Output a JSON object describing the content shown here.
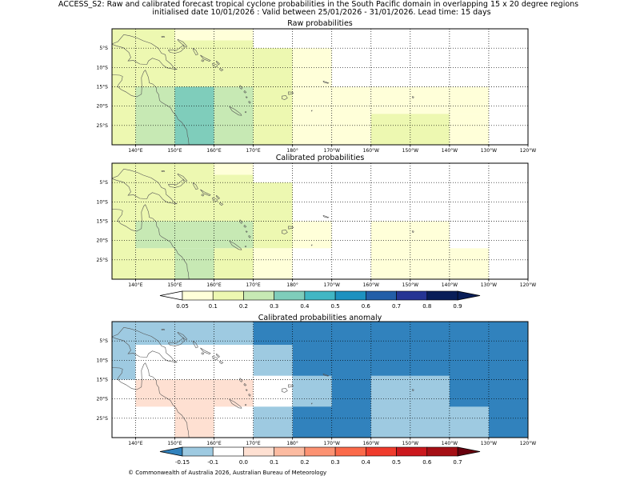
{
  "header": {
    "title_line1": "ACCESS_S2: Raw and calibrated forecast tropical cyclone probabilities in the South Pacific domain in overlapping 15 x 20 degree regions",
    "title_line2": "initialised date 10/01/2026 :  Valid between 25/01/2026 - 31/01/2026. Lead time: 15 days"
  },
  "footer": {
    "copyright": "© Commonwealth of Australia 2026, Australian Bureau of Meteorology"
  },
  "chart_data": [
    {
      "type": "heatmap",
      "title": "Raw probabilities",
      "xlim": [
        134,
        240
      ],
      "ylim": [
        -30,
        0
      ],
      "x_ticks": [
        140,
        150,
        160,
        170,
        180,
        190,
        200,
        210,
        220,
        230,
        240
      ],
      "x_tick_labels": [
        "140°E",
        "150°E",
        "160°E",
        "170°E",
        "180°",
        "170°W",
        "160°W",
        "150°W",
        "140°W",
        "130°W",
        "120°W"
      ],
      "y_ticks": [
        -5,
        -10,
        -15,
        -20,
        -25
      ],
      "y_tick_labels": [
        "5°S",
        "10°S",
        "15°S",
        "20°S",
        "25°S"
      ],
      "cells": [
        {
          "lon": [
            134,
            140
          ],
          "lat": [
            -30,
            0
          ],
          "value": 0.12
        },
        {
          "lon": [
            140,
            150
          ],
          "lat": [
            -15,
            0
          ],
          "value": 0.12
        },
        {
          "lon": [
            140,
            150
          ],
          "lat": [
            -30,
            -15
          ],
          "value": 0.22
        },
        {
          "lon": [
            150,
            160
          ],
          "lat": [
            -30,
            -15
          ],
          "value": 0.32
        },
        {
          "lon": [
            150,
            160
          ],
          "lat": [
            -15,
            -3
          ],
          "value": 0.12
        },
        {
          "lon": [
            150,
            170
          ],
          "lat": [
            -3,
            0
          ],
          "value": 0.07
        },
        {
          "lon": [
            160,
            170
          ],
          "lat": [
            -3,
            -15
          ],
          "value": 0.12
        },
        {
          "lon": [
            160,
            170
          ],
          "lat": [
            -30,
            -15
          ],
          "value": 0.22
        },
        {
          "lon": [
            170,
            180
          ],
          "lat": [
            -30,
            -5
          ],
          "value": 0.12
        },
        {
          "lon": [
            180,
            190
          ],
          "lat": [
            -15,
            -5
          ],
          "value": 0.07
        },
        {
          "lon": [
            180,
            190
          ],
          "lat": [
            -30,
            -15
          ],
          "value": 0.07
        },
        {
          "lon": [
            190,
            200
          ],
          "lat": [
            -30,
            -15
          ],
          "value": 0.07
        },
        {
          "lon": [
            200,
            230
          ],
          "lat": [
            -22,
            -15
          ],
          "value": 0.07
        },
        {
          "lon": [
            200,
            220
          ],
          "lat": [
            -30,
            -22
          ],
          "value": 0.12
        },
        {
          "lon": [
            220,
            230
          ],
          "lat": [
            -30,
            -22
          ],
          "value": 0.07
        }
      ]
    },
    {
      "type": "heatmap",
      "title": "Calibrated probabilities",
      "xlim": [
        134,
        240
      ],
      "ylim": [
        -30,
        0
      ],
      "x_ticks": [
        140,
        150,
        160,
        170,
        180,
        190,
        200,
        210,
        220,
        230,
        240
      ],
      "x_tick_labels": [
        "140°E",
        "150°E",
        "160°E",
        "170°E",
        "180°",
        "170°W",
        "160°W",
        "150°W",
        "140°W",
        "130°W",
        "120°W"
      ],
      "y_ticks": [
        -5,
        -10,
        -15,
        -20,
        -25
      ],
      "y_tick_labels": [
        "5°S",
        "10°S",
        "15°S",
        "20°S",
        "25°S"
      ],
      "cells": [
        {
          "lon": [
            134,
            140
          ],
          "lat": [
            -30,
            0
          ],
          "value": 0.12
        },
        {
          "lon": [
            140,
            160
          ],
          "lat": [
            -15,
            0
          ],
          "value": 0.12
        },
        {
          "lon": [
            140,
            160
          ],
          "lat": [
            -22,
            -15
          ],
          "value": 0.22
        },
        {
          "lon": [
            140,
            150
          ],
          "lat": [
            -30,
            -22
          ],
          "value": 0.12
        },
        {
          "lon": [
            150,
            160
          ],
          "lat": [
            -30,
            -22
          ],
          "value": 0.22
        },
        {
          "lon": [
            160,
            170
          ],
          "lat": [
            -3,
            0
          ],
          "value": 0.07
        },
        {
          "lon": [
            160,
            170
          ],
          "lat": [
            -15,
            -3
          ],
          "value": 0.12
        },
        {
          "lon": [
            160,
            170
          ],
          "lat": [
            -22,
            -15
          ],
          "value": 0.22
        },
        {
          "lon": [
            160,
            170
          ],
          "lat": [
            -30,
            -22
          ],
          "value": 0.12
        },
        {
          "lon": [
            170,
            180
          ],
          "lat": [
            -22,
            -5
          ],
          "value": 0.12
        },
        {
          "lon": [
            170,
            180
          ],
          "lat": [
            -30,
            -22
          ],
          "value": 0.07
        },
        {
          "lon": [
            180,
            190
          ],
          "lat": [
            -22,
            -15
          ],
          "value": 0.07
        },
        {
          "lon": [
            200,
            220
          ],
          "lat": [
            -22,
            -15
          ],
          "value": 0.07
        },
        {
          "lon": [
            200,
            230
          ],
          "lat": [
            -30,
            -22
          ],
          "value": 0.07
        }
      ],
      "colorbar": {
        "bounds": [
          0.05,
          0.1,
          0.2,
          0.3,
          0.4,
          0.5,
          0.6,
          0.7,
          0.8,
          0.9
        ],
        "labels": [
          "0.05",
          "0.1",
          "0.2",
          "0.3",
          "0.4",
          "0.5",
          "0.6",
          "0.7",
          "0.8",
          "0.9"
        ],
        "under_color": "#ffffff",
        "over_color": "#081d58",
        "colors": [
          "#ffffd9",
          "#edf8b1",
          "#c7e9b4",
          "#7fcdbb",
          "#41b6c4",
          "#1d91c0",
          "#225ea8",
          "#253494",
          "#081d58"
        ]
      }
    },
    {
      "type": "heatmap",
      "title": "Calibrated probabilities anomaly",
      "xlim": [
        134,
        240
      ],
      "ylim": [
        -30,
        0
      ],
      "x_ticks": [
        140,
        150,
        160,
        170,
        180,
        190,
        200,
        210,
        220,
        230,
        240
      ],
      "x_tick_labels": [
        "140°E",
        "150°E",
        "160°E",
        "170°E",
        "180°",
        "170°W",
        "160°W",
        "150°W",
        "140°W",
        "130°W",
        "120°W"
      ],
      "y_ticks": [
        -5,
        -10,
        -15,
        -20,
        -25
      ],
      "y_tick_labels": [
        "5°S",
        "10°S",
        "15°S",
        "20°S",
        "25°S"
      ],
      "cells": [
        {
          "lon": [
            134,
            170
          ],
          "lat": [
            -6,
            0
          ],
          "value": -0.12
        },
        {
          "lon": [
            134,
            140
          ],
          "lat": [
            -15,
            -6
          ],
          "value": -0.12
        },
        {
          "lon": [
            140,
            150
          ],
          "lat": [
            -22,
            -15
          ],
          "value": 0.05
        },
        {
          "lon": [
            150,
            160
          ],
          "lat": [
            -30,
            -15
          ],
          "value": 0.05
        },
        {
          "lon": [
            160,
            170
          ],
          "lat": [
            -22,
            -15
          ],
          "value": 0.05
        },
        {
          "lon": [
            170,
            240
          ],
          "lat": [
            -6,
            0
          ],
          "value": -0.17
        },
        {
          "lon": [
            170,
            180
          ],
          "lat": [
            -14,
            -6
          ],
          "value": -0.12
        },
        {
          "lon": [
            180,
            240
          ],
          "lat": [
            -30,
            -6
          ],
          "value": -0.17
        },
        {
          "lon": [
            170,
            180
          ],
          "lat": [
            -30,
            -22
          ],
          "value": -0.12
        },
        {
          "lon": [
            180,
            190
          ],
          "lat": [
            -22,
            -14
          ],
          "value": -0.12
        },
        {
          "lon": [
            200,
            220
          ],
          "lat": [
            -30,
            -14
          ],
          "value": -0.12
        },
        {
          "lon": [
            220,
            230
          ],
          "lat": [
            -30,
            -22
          ],
          "value": -0.12
        }
      ],
      "colorbar": {
        "bounds": [
          -0.15,
          -0.1,
          0.0,
          0.1,
          0.2,
          0.3,
          0.4,
          0.5,
          0.6,
          0.7
        ],
        "labels": [
          "-0.15",
          "-0.1",
          "0.0",
          "0.1",
          "0.2",
          "0.3",
          "0.4",
          "0.5",
          "0.6",
          "0.7"
        ],
        "under_color": "#3182bd",
        "over_color": "#67000d",
        "colors": [
          "#9ecae1",
          "#ffffff",
          "#fee0d2",
          "#fcbba1",
          "#fc9272",
          "#fb6a4a",
          "#ef3b2c",
          "#cb181d",
          "#a50f15"
        ]
      }
    }
  ]
}
